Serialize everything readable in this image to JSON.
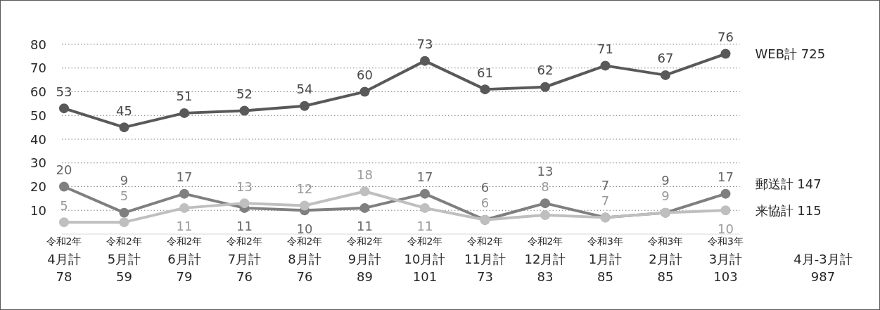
{
  "chart_data": {
    "type": "line",
    "categories": [
      "令和2年\n4月計\n78",
      "令和2年\n5月計\n59",
      "令和2年\n6月計\n79",
      "令和2年\n7月計\n76",
      "令和2年\n8月計\n76",
      "令和2年\n9月計\n89",
      "令和2年\n10月計\n101",
      "令和2年\n11月計\n73",
      "令和2年\n12月計\n83",
      "令和3年\n1月計\n85",
      "令和3年\n2月計\n85",
      "令和3年\n3月計\n103"
    ],
    "series": [
      {
        "name": "WEB計 725",
        "color": "#595959",
        "values": [
          53,
          45,
          51,
          52,
          54,
          60,
          73,
          61,
          62,
          71,
          67,
          76
        ]
      },
      {
        "name": "郵送計 147",
        "color": "#7f7f7f",
        "values": [
          20,
          9,
          17,
          11,
          10,
          11,
          17,
          6,
          13,
          7,
          9,
          17
        ]
      },
      {
        "name": "来協計 115",
        "color": "#bfbfbf",
        "values": [
          5,
          5,
          11,
          13,
          12,
          18,
          11,
          6,
          8,
          7,
          9,
          10
        ]
      }
    ],
    "ylim": [
      0,
      80
    ],
    "yticks": [
      10,
      20,
      30,
      40,
      50,
      60,
      70,
      80
    ],
    "grid": "y",
    "marker": "circle",
    "line_style": "solid",
    "data_labels": true,
    "legend": "right",
    "annotations": [
      "4月-3月計\n987"
    ]
  }
}
